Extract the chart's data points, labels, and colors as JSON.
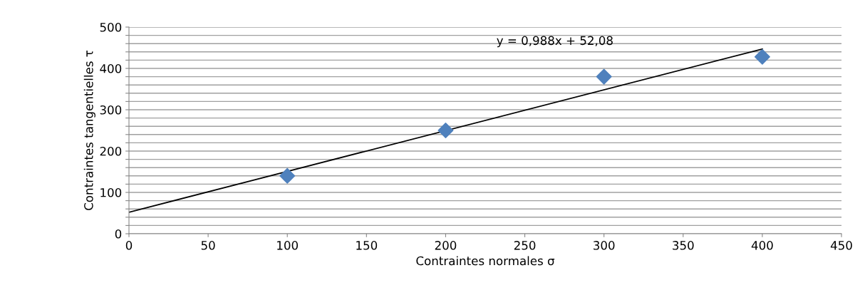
{
  "chart_data": {
    "type": "scatter",
    "xlabel": "Contraintes normales σ",
    "ylabel": "Contraintes tangentielles τ",
    "xlim": [
      0,
      450
    ],
    "xticks": [
      0,
      50,
      100,
      150,
      200,
      250,
      300,
      350,
      400,
      450
    ],
    "ylim": [
      0,
      500
    ],
    "yticks": [
      0,
      {
        "value": 20,
        "label": null
      },
      {
        "value": 40,
        "label": null
      },
      {
        "value": 60,
        "label": null
      },
      {
        "value": 80,
        "label": null
      },
      100,
      {
        "value": 120,
        "label": null
      },
      {
        "value": 140,
        "label": null
      },
      {
        "value": 160,
        "label": null
      },
      {
        "value": 180,
        "label": null
      },
      200,
      {
        "value": 220,
        "label": null
      },
      {
        "value": 240,
        "label": null
      },
      {
        "value": 260,
        "label": null
      },
      {
        "value": 280,
        "label": null
      },
      300,
      {
        "value": 320,
        "label": null
      },
      {
        "value": 340,
        "label": null
      },
      {
        "value": 360,
        "label": null
      },
      {
        "value": 380,
        "label": null
      },
      400,
      {
        "value": 420,
        "label": null
      },
      {
        "value": 440,
        "label": null
      },
      {
        "value": 460,
        "label": null
      },
      {
        "value": 480,
        "label": null
      },
      500
    ],
    "grid": "y",
    "marker": "diamond",
    "legend": false,
    "series": [
      {
        "color": "#4f81bd",
        "x": [
          100,
          200,
          300,
          400
        ],
        "values": [
          140,
          250,
          380,
          428
        ]
      },
      {
        "type": "line",
        "marker": "none",
        "color": "#000000",
        "x": [
          0,
          400
        ],
        "values": [
          52,
          447
        ]
      }
    ],
    "annotations": [
      "y = 0,988x + 52,08"
    ]
  }
}
